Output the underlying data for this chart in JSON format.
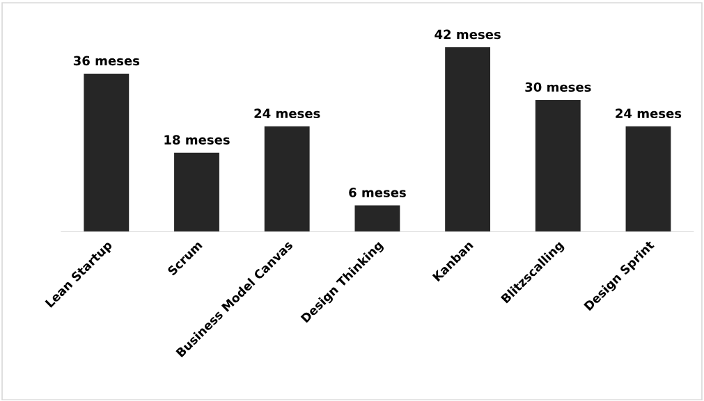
{
  "chart_data": {
    "type": "bar",
    "categories": [
      "Lean Startup",
      "Scrum",
      "Business Model Canvas",
      "Design Thinking",
      "Kanban",
      "Blitzscalling",
      "Design Sprint"
    ],
    "values": [
      36,
      18,
      24,
      6,
      42,
      30,
      24
    ],
    "value_labels": [
      "36 meses",
      "18 meses",
      "24 meses",
      "6 meses",
      "42 meses",
      "30 meses",
      "24 meses"
    ],
    "color": "#262626",
    "grid": false,
    "legend": false
  }
}
